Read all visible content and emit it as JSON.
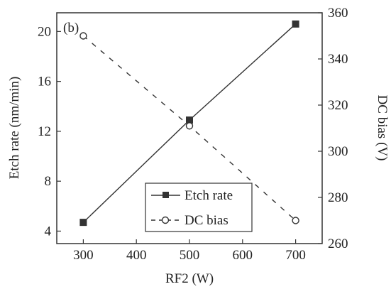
{
  "chart_data": {
    "type": "line",
    "panel_label": "(b)",
    "x": [
      300,
      500,
      700
    ],
    "xlabel": "RF2 (W)",
    "xlim": [
      250,
      750
    ],
    "xticks": [
      300,
      400,
      500,
      600,
      700
    ],
    "ylabel_left": "Etch rate (nm/min)",
    "ylim_left": [
      3,
      21.5
    ],
    "yticks_left": [
      4,
      8,
      12,
      16,
      20
    ],
    "ylabel_right": "DC bias (V)",
    "ylim_right": [
      260,
      360
    ],
    "yticks_right": [
      260,
      280,
      300,
      320,
      340,
      360
    ],
    "series": [
      {
        "name": "Etch rate",
        "axis": "left",
        "values": [
          4.7,
          12.9,
          20.6
        ],
        "marker": "filled-square",
        "line": "solid",
        "color": "#333333"
      },
      {
        "name": "DC bias",
        "axis": "right",
        "values": [
          350,
          311,
          270
        ],
        "marker": "open-circle",
        "line": "dashed",
        "color": "#333333"
      }
    ],
    "legend": {
      "placement": "bottom-right"
    },
    "grid": false
  }
}
